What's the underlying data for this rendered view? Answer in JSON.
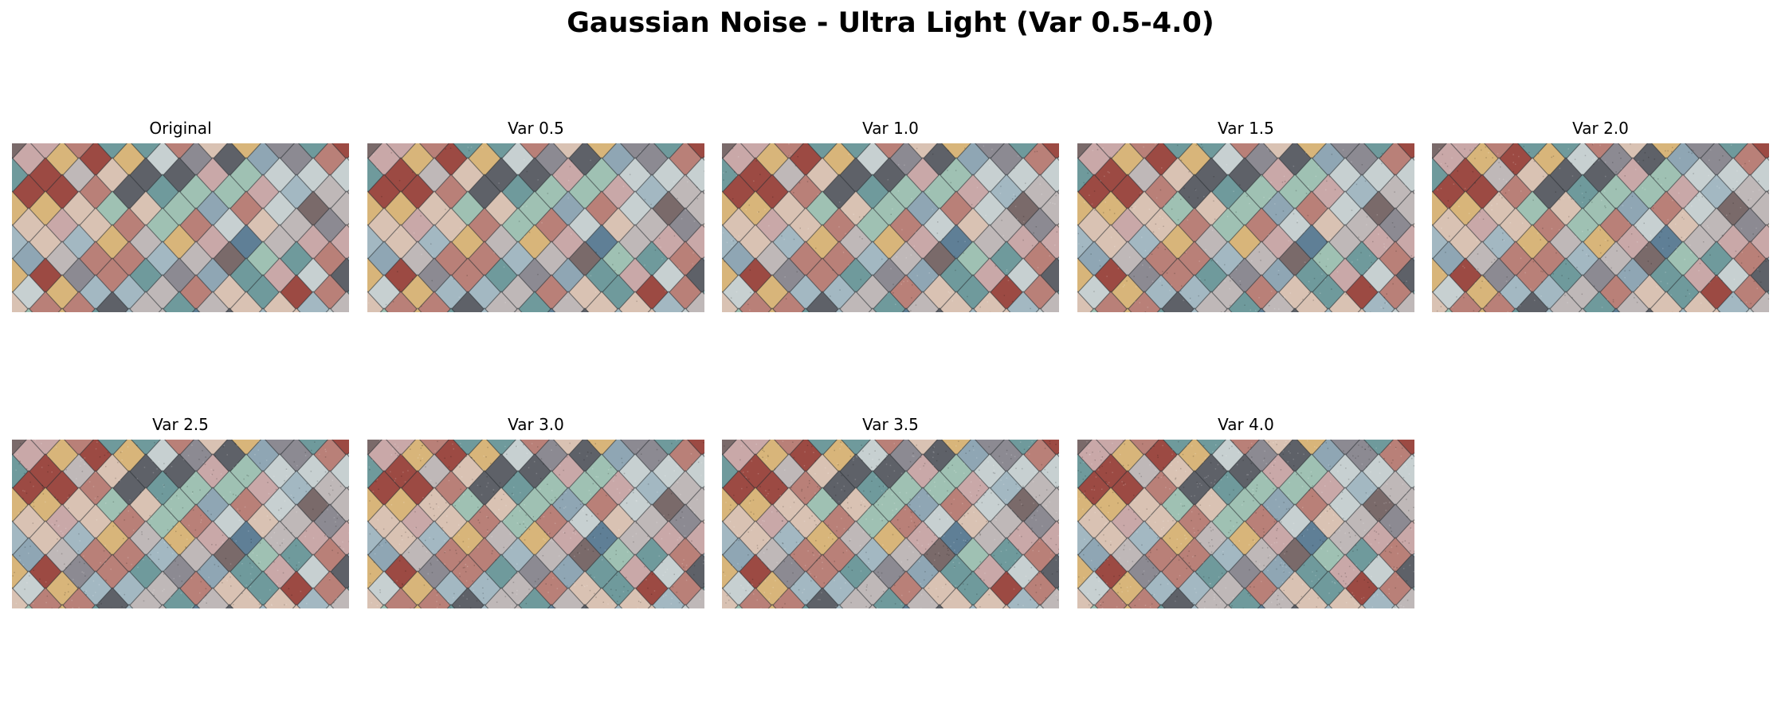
{
  "figure": {
    "title": "Gaussian Noise - Ultra Light (Var 0.5-4.0)"
  },
  "panels": [
    {
      "label": "Original",
      "noise_variance": 0
    },
    {
      "label": "Var 0.5",
      "noise_variance": 0.5
    },
    {
      "label": "Var 1.0",
      "noise_variance": 1.0
    },
    {
      "label": "Var 1.5",
      "noise_variance": 1.5
    },
    {
      "label": "Var 2.0",
      "noise_variance": 2.0
    },
    {
      "label": "Var 2.5",
      "noise_variance": 2.5
    },
    {
      "label": "Var 3.0",
      "noise_variance": 3.0
    },
    {
      "label": "Var 3.5",
      "noise_variance": 3.5
    },
    {
      "label": "Var 4.0",
      "noise_variance": 4.0
    }
  ],
  "image_content": {
    "subject": "colorful diamond-shaped roof tiles",
    "palette": [
      "#8fa6b4",
      "#6f9a9c",
      "#a3b8c2",
      "#c9a8a8",
      "#b98078",
      "#9c4a43",
      "#7a6a6a",
      "#5e6168",
      "#d9c2b3",
      "#d8b57a",
      "#9fc1b3",
      "#5f7f96",
      "#bfb8b8",
      "#8c8a92",
      "#c7d0d1"
    ]
  }
}
